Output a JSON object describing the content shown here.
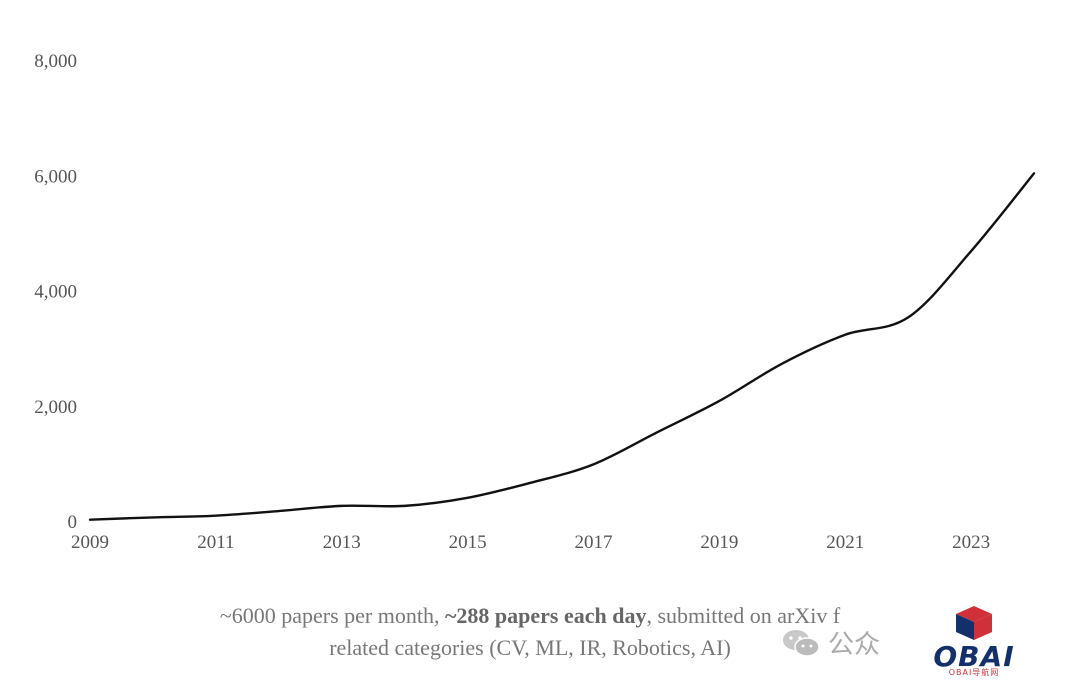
{
  "chart_data": {
    "type": "line",
    "title": "",
    "xlabel": "",
    "ylabel": "",
    "xlim": [
      2009,
      2024
    ],
    "ylim": [
      0,
      8000
    ],
    "x_ticks": [
      "2009",
      "2011",
      "2013",
      "2015",
      "2017",
      "2019",
      "2021",
      "2023"
    ],
    "y_ticks": [
      "0",
      "2,000",
      "4,000",
      "6,000",
      "8,000"
    ],
    "grid": false,
    "line_color": "#111111",
    "series": [
      {
        "x": [
          2009,
          2010,
          2011,
          2012,
          2013,
          2014,
          2015,
          2016,
          2017,
          2018,
          2019,
          2020,
          2021,
          2022,
          2023,
          2024
        ],
        "values": [
          40,
          80,
          110,
          190,
          280,
          280,
          420,
          680,
          1000,
          1550,
          2100,
          2750,
          3250,
          3550,
          4700,
          6050
        ]
      }
    ]
  },
  "caption": {
    "line1_pre": "~6000 papers per month, ",
    "line1_bold": "~288 papers each day",
    "line1_post": ", submitted on arXiv f",
    "line2": "related categories (CV, ML, IR, Robotics, AI)"
  },
  "watermark": {
    "text": "公众",
    "icon": "wechat-icon",
    "color": "#aaaaaa"
  },
  "logo": {
    "text": "OBAI",
    "subtext": "OBAI导航网",
    "primary_color": "#14306b",
    "accent_color": "#d0303a"
  }
}
